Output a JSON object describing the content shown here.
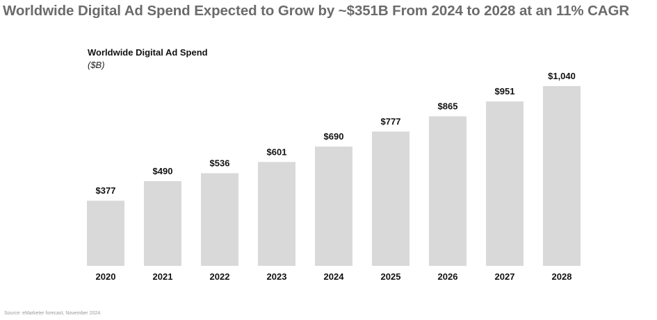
{
  "headline": "Worldwide Digital Ad Spend Expected to Grow by ~$351B From 2024 to 2028 at an 11% CAGR",
  "source": "Source: eMarketer forecast, November 2024.",
  "colors": {
    "bar": "#d9d9d9",
    "headline": "#6b6b6b",
    "label": "#111111"
  },
  "chart_data": {
    "type": "bar",
    "title": "Worldwide Digital Ad Spend",
    "subtitle": "($B)",
    "xlabel": "",
    "ylabel": "",
    "grid": false,
    "legend": "none",
    "categories": [
      "2020",
      "2021",
      "2022",
      "2023",
      "2024",
      "2025",
      "2026",
      "2027",
      "2028"
    ],
    "values": [
      377,
      490,
      536,
      601,
      690,
      777,
      865,
      951,
      1040
    ],
    "data_labels": [
      "$377",
      "$490",
      "$536",
      "$601",
      "$690",
      "$777",
      "$865",
      "$951",
      "$1,040"
    ],
    "ylim": [
      0,
      1040
    ]
  }
}
